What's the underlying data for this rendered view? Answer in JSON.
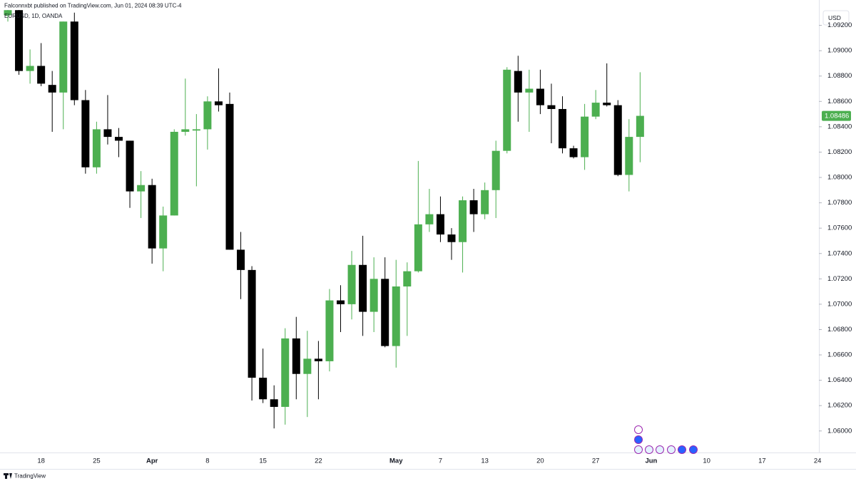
{
  "header": {
    "published": "Falconnxbt published on TradingView.com, Jun 01, 2024 08:39 UTC-4",
    "symbol": "EURUSD, 1D, OANDA",
    "currency": "USD"
  },
  "footer": {
    "brand": "TradingView"
  },
  "chart_data": {
    "type": "candlestick",
    "categories": [
      null,
      null,
      null,
      "18",
      null,
      null,
      null,
      null,
      "25",
      null,
      null,
      null,
      null,
      "Apr",
      null,
      null,
      null,
      null,
      "8",
      null,
      null,
      null,
      null,
      "15",
      null,
      null,
      null,
      null,
      "22",
      null,
      null,
      null,
      null,
      null,
      null,
      "May",
      null,
      null,
      null,
      "7",
      null,
      null,
      null,
      "13",
      null,
      null,
      null,
      null,
      "20",
      null,
      null,
      null,
      null,
      "27",
      null,
      null,
      null,
      null,
      "Jun",
      null,
      null,
      null,
      null,
      "10",
      null,
      null,
      null,
      null,
      "17",
      null,
      null,
      null,
      null,
      "24"
    ],
    "open": [
      1.0928,
      1.0932,
      1.0884,
      1.0888,
      1.0873,
      1.0867,
      1.0923,
      1.0861,
      1.0808,
      1.0838,
      1.0832,
      1.0829,
      1.0789,
      1.0794,
      1.0744,
      1.077,
      1.0836,
      1.0837,
      1.0838,
      1.086,
      1.0858,
      1.0743,
      1.0727,
      1.0642,
      1.0625,
      1.0619,
      1.0673,
      1.0645,
      1.0657,
      1.0655,
      1.0703,
      1.07,
      1.0731,
      1.0694,
      1.072,
      1.0667,
      1.0714,
      1.0726,
      1.0763,
      1.0771,
      1.0755,
      1.0749,
      1.0782,
      1.0771,
      1.079,
      1.0821,
      1.0884,
      1.0867,
      1.087,
      1.0857,
      1.0854,
      1.0823,
      1.0816,
      1.0848,
      1.0859,
      1.0857,
      1.0802,
      1.0832,
      null,
      null,
      null,
      null,
      null,
      null,
      null,
      null,
      null,
      null,
      null,
      null,
      null,
      null,
      null,
      null
    ],
    "high": [
      1.0934,
      1.0937,
      1.0901,
      1.0906,
      1.0884,
      1.0923,
      1.093,
      1.0869,
      1.0844,
      1.0865,
      1.0839,
      1.0829,
      1.0805,
      1.0799,
      1.0777,
      1.0838,
      1.0878,
      1.085,
      1.0864,
      1.0886,
      1.0867,
      1.0757,
      1.073,
      1.0665,
      1.0636,
      1.0681,
      1.069,
      1.0679,
      1.0671,
      1.0712,
      1.0715,
      1.0742,
      1.0754,
      1.0737,
      1.0737,
      1.0735,
      1.0733,
      1.0813,
      1.0791,
      1.0785,
      1.076,
      1.0785,
      1.0791,
      1.0796,
      1.0829,
      1.0887,
      1.0896,
      1.0885,
      1.0885,
      1.0874,
      1.0864,
      1.0825,
      1.0858,
      1.0869,
      1.089,
      1.0861,
      1.0846,
      1.0883,
      null,
      null,
      null,
      null,
      null,
      null,
      null,
      null,
      null,
      null,
      null,
      null,
      null,
      null,
      null,
      null
    ],
    "low": [
      1.0923,
      1.0881,
      1.0874,
      1.0872,
      1.0836,
      1.0838,
      1.0857,
      1.0803,
      1.0803,
      1.0826,
      1.0816,
      1.0776,
      1.0768,
      1.0732,
      1.0726,
      1.077,
      1.0833,
      1.0793,
      1.0822,
      1.0852,
      1.0743,
      1.0704,
      1.0624,
      1.0622,
      1.0602,
      1.0605,
      1.0625,
      1.0611,
      1.0625,
      1.0647,
      1.0678,
      1.0688,
      1.0675,
      1.0678,
      1.0666,
      1.065,
      1.0675,
      1.0725,
      1.0757,
      1.0749,
      1.0735,
      1.0725,
      1.0757,
      1.0767,
      1.0768,
      1.0819,
      1.0844,
      1.0836,
      1.085,
      1.0827,
      1.0819,
      1.0815,
      1.0806,
      1.0846,
      1.0856,
      1.0801,
      1.0789,
      1.0812,
      null,
      null,
      null,
      null,
      null,
      null,
      null,
      null,
      null,
      null,
      null,
      null,
      null,
      null,
      null,
      null
    ],
    "close": [
      1.0932,
      1.0884,
      1.0888,
      1.0874,
      1.0867,
      1.0923,
      1.0861,
      1.0808,
      1.0838,
      1.0832,
      1.0829,
      1.0789,
      1.0794,
      1.0744,
      1.077,
      1.0836,
      1.0838,
      1.0838,
      1.086,
      1.0857,
      1.0743,
      1.0727,
      1.0642,
      1.0625,
      1.0619,
      1.0673,
      1.0645,
      1.0657,
      1.0655,
      1.0703,
      1.07,
      1.0731,
      1.0694,
      1.072,
      1.0667,
      1.0714,
      1.0726,
      1.0763,
      1.0771,
      1.0755,
      1.0749,
      1.0782,
      1.0771,
      1.079,
      1.0821,
      1.0885,
      1.0867,
      1.087,
      1.0857,
      1.0854,
      1.0823,
      1.0816,
      1.0848,
      1.0859,
      1.0857,
      1.0802,
      1.0832,
      1.08486,
      null,
      null,
      null,
      null,
      null,
      null,
      null,
      null,
      null,
      null,
      null,
      null,
      null,
      null,
      null,
      null
    ],
    "up_color": "#4caf50",
    "down_color": "#000000",
    "last_price": 1.08486,
    "ylim": [
      1.0583,
      1.094
    ],
    "yticks": [
      {
        "value": 1.06,
        "label": "1.06000"
      },
      {
        "value": 1.062,
        "label": "1.06200"
      },
      {
        "value": 1.064,
        "label": "1.06400"
      },
      {
        "value": 1.066,
        "label": "1.06600"
      },
      {
        "value": 1.068,
        "label": "1.06800"
      },
      {
        "value": 1.07,
        "label": "1.07000"
      },
      {
        "value": 1.072,
        "label": "1.07200"
      },
      {
        "value": 1.074,
        "label": "1.07400"
      },
      {
        "value": 1.076,
        "label": "1.07600"
      },
      {
        "value": 1.078,
        "label": "1.07800"
      },
      {
        "value": 1.08,
        "label": "1.08000"
      },
      {
        "value": 1.082,
        "label": "1.08200"
      },
      {
        "value": 1.084,
        "label": "1.08400"
      },
      {
        "value": 1.086,
        "label": "1.08600"
      },
      {
        "value": 1.088,
        "label": "1.08800"
      },
      {
        "value": 1.09,
        "label": "1.09000"
      },
      {
        "value": 1.092,
        "label": "1.09200"
      }
    ]
  }
}
